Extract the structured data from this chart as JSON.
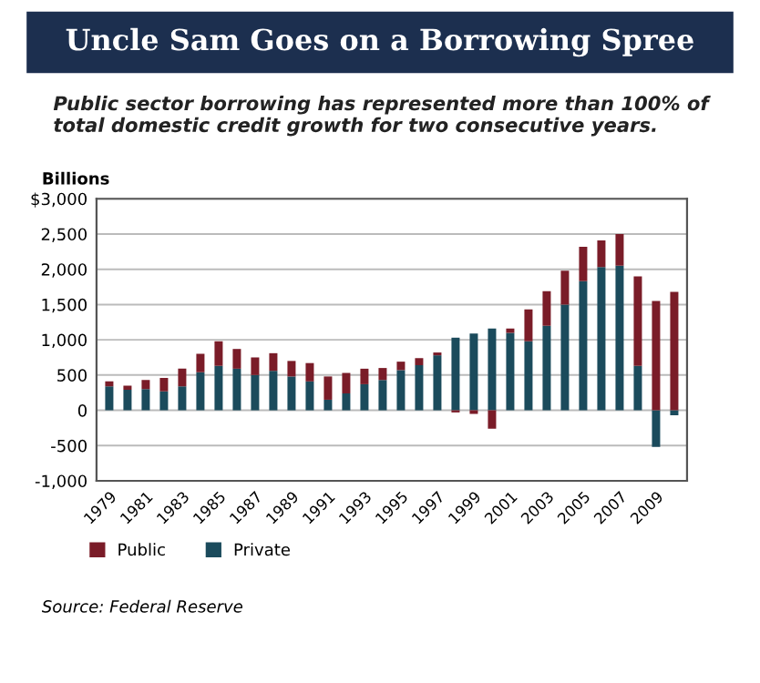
{
  "chart_data": {
    "type": "bar",
    "title": "Uncle Sam Goes on a Borrowing Spree",
    "subtitle": "Public sector borrowing has represented more than 100% of total domestic credit growth for two consecutive years.",
    "ylabel": "Billions",
    "categories": [
      "1979",
      null,
      "1981",
      null,
      "1983",
      null,
      "1985",
      null,
      "1987",
      null,
      "1989",
      null,
      "1991",
      null,
      "1993",
      null,
      "1995",
      null,
      "1997",
      null,
      "1999",
      null,
      "2001",
      null,
      "2003",
      null,
      "2005",
      null,
      "2007",
      null,
      "2009",
      null
    ],
    "stacked": true,
    "series": [
      {
        "name": "Private",
        "color": "#1b4b5c",
        "values": [
          340,
          290,
          300,
          270,
          340,
          540,
          630,
          590,
          500,
          560,
          480,
          410,
          150,
          240,
          370,
          430,
          570,
          640,
          780,
          1030,
          1090,
          1160,
          1100,
          980,
          1200,
          1500,
          1830,
          2030,
          2050,
          630,
          -520,
          -70
        ]
      },
      {
        "name": "Public",
        "color": "#7a1c28",
        "values": [
          70,
          60,
          130,
          190,
          250,
          260,
          350,
          280,
          250,
          250,
          220,
          260,
          330,
          290,
          220,
          170,
          120,
          100,
          40,
          -30,
          -50,
          -260,
          60,
          450,
          490,
          480,
          490,
          380,
          450,
          1270,
          1550,
          1680
        ]
      }
    ],
    "ylim": [
      -1000,
      3000
    ],
    "yticks": [
      {
        "value": 3000,
        "label": "$3,000"
      },
      {
        "value": 2500,
        "label": "2,500"
      },
      {
        "value": 2000,
        "label": "2,000"
      },
      {
        "value": 1500,
        "label": "1,500"
      },
      {
        "value": 1000,
        "label": "1,000"
      },
      500,
      0,
      -500,
      {
        "value": -1000,
        "label": "-1,000"
      }
    ],
    "grid": "y",
    "legend": "bottom left",
    "annotations": [
      "Source: Federal Reserve"
    ]
  }
}
